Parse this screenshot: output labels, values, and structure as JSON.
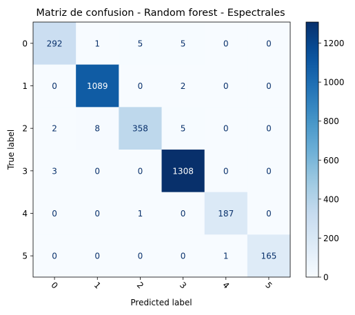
{
  "chart_data": {
    "type": "heatmap",
    "title": "Matriz de confusion - Random forest - Espectrales",
    "xlabel": "Predicted label",
    "ylabel": "True label",
    "x_categories": [
      "0",
      "1",
      "2",
      "3",
      "4",
      "5"
    ],
    "y_categories": [
      "0",
      "1",
      "2",
      "3",
      "4",
      "5"
    ],
    "values": [
      [
        292,
        1,
        5,
        5,
        0,
        0
      ],
      [
        0,
        1089,
        0,
        2,
        0,
        0
      ],
      [
        2,
        8,
        358,
        5,
        0,
        0
      ],
      [
        3,
        0,
        0,
        1308,
        0,
        0
      ],
      [
        0,
        0,
        1,
        0,
        187,
        0
      ],
      [
        0,
        0,
        0,
        0,
        1,
        165
      ]
    ],
    "colormap": "Blues",
    "vmin": 0,
    "vmax": 1308,
    "colorbar_ticks": [
      0,
      200,
      400,
      600,
      800,
      1000,
      1200
    ],
    "xtick_rotation": 45,
    "grid": false
  }
}
